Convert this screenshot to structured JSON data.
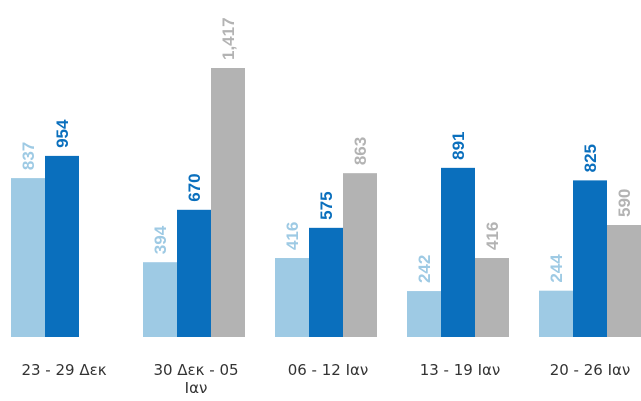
{
  "chart_data": {
    "type": "bar",
    "categories": [
      [
        "23 - 29 Δεκ"
      ],
      [
        "30 Δεκ - 05",
        "Ιαν"
      ],
      [
        "06 - 12 Ιαν"
      ],
      [
        "13 - 19 Ιαν"
      ],
      [
        "20 - 26 Ιαν"
      ]
    ],
    "series": [
      {
        "color": "#9ecae4",
        "values": [
          837,
          394,
          416,
          242,
          244
        ],
        "labels": [
          "837",
          "394",
          "416",
          "242",
          "244"
        ]
      },
      {
        "color": "#0a6fbd",
        "values": [
          954,
          670,
          575,
          891,
          825
        ],
        "labels": [
          "954",
          "670",
          "575",
          "891",
          "825"
        ]
      },
      {
        "color": "#b3b3b3",
        "values": [
          null,
          1417,
          863,
          416,
          590
        ],
        "labels": [
          "",
          "1,417",
          "863",
          "416",
          "590"
        ]
      }
    ],
    "ylim": [
      0,
      1417
    ],
    "grid": false,
    "legend": "none"
  }
}
